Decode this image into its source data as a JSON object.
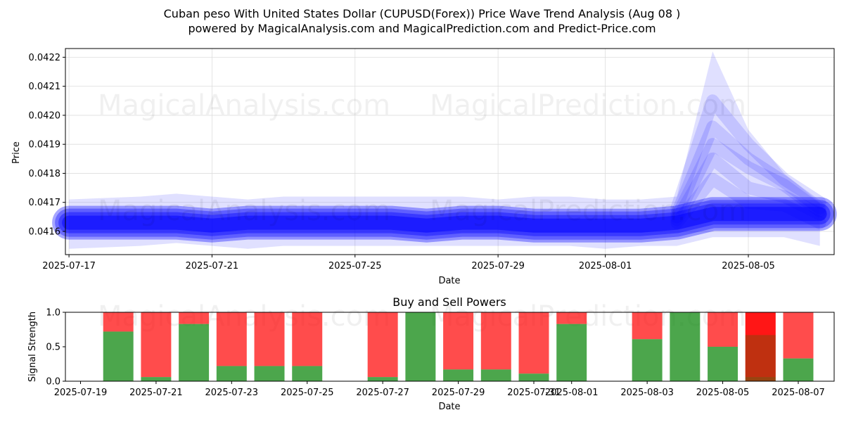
{
  "header": {
    "title": "Cuban peso With United States Dollar (CUPUSD(Forex)) Price Wave Trend Analysis (Aug 08 )",
    "subtitle": "powered by MagicalAnalysis.com and MagicalPrediction.com and Predict-Price.com"
  },
  "watermarks": [
    "MagicalAnalysis.com",
    "MagicalPrediction.com"
  ],
  "colors": {
    "wave": "#0000ff",
    "buy": "#008000",
    "sell": "#ff0000",
    "grid": "#dddddd"
  },
  "chart_data": [
    {
      "type": "area",
      "title": "",
      "xlabel": "Date",
      "ylabel": "Price",
      "xlim": [
        "2025-07-17",
        "2025-08-07"
      ],
      "ylim": [
        0.04152,
        0.04223
      ],
      "xticks": [
        "2025-07-17",
        "2025-07-21",
        "2025-07-25",
        "2025-07-29",
        "2025-08-01",
        "2025-08-05"
      ],
      "yticks": [
        0.0416,
        0.0417,
        0.0418,
        0.0419,
        0.042,
        0.0421,
        0.0422
      ],
      "grid": true,
      "main_series": {
        "dates": [
          "2025-07-17",
          "2025-07-18",
          "2025-07-19",
          "2025-07-20",
          "2025-07-21",
          "2025-07-22",
          "2025-07-23",
          "2025-07-24",
          "2025-07-25",
          "2025-07-26",
          "2025-07-27",
          "2025-07-28",
          "2025-07-29",
          "2025-07-30",
          "2025-07-31",
          "2025-08-01",
          "2025-08-02",
          "2025-08-03",
          "2025-08-04",
          "2025-08-05",
          "2025-08-06",
          "2025-08-07"
        ],
        "values": [
          0.04163,
          0.04163,
          0.04163,
          0.04163,
          0.04162,
          0.04163,
          0.04163,
          0.04163,
          0.04163,
          0.04163,
          0.04162,
          0.04163,
          0.04163,
          0.04162,
          0.04162,
          0.04162,
          0.04162,
          0.04163,
          0.04166,
          0.04166,
          0.04166,
          0.04166
        ]
      },
      "wave_band": {
        "dates": [
          "2025-07-17",
          "2025-07-19",
          "2025-07-20",
          "2025-07-21",
          "2025-07-22",
          "2025-07-23",
          "2025-07-24",
          "2025-07-25",
          "2025-07-27",
          "2025-07-28",
          "2025-07-29",
          "2025-07-30",
          "2025-07-31",
          "2025-08-01",
          "2025-08-02",
          "2025-08-03",
          "2025-08-04",
          "2025-08-05",
          "2025-08-06",
          "2025-08-07"
        ],
        "upper": [
          0.04171,
          0.04172,
          0.04173,
          0.04172,
          0.04171,
          0.04172,
          0.04172,
          0.04172,
          0.04172,
          0.04172,
          0.04171,
          0.04172,
          0.04172,
          0.04171,
          0.04171,
          0.04172,
          0.04222,
          0.04195,
          0.0418,
          0.0417
        ],
        "lower": [
          0.04154,
          0.04155,
          0.04156,
          0.04155,
          0.04154,
          0.04155,
          0.04155,
          0.04155,
          0.04155,
          0.04155,
          0.04155,
          0.04155,
          0.04155,
          0.04154,
          0.04155,
          0.04155,
          0.04158,
          0.04158,
          0.04158,
          0.04155
        ]
      },
      "wave_lines": [
        {
          "dates": [
            "2025-08-03",
            "2025-08-04",
            "2025-08-05",
            "2025-08-06",
            "2025-08-07"
          ],
          "values": [
            0.04168,
            0.04205,
            0.0419,
            0.04178,
            0.0417
          ]
        },
        {
          "dates": [
            "2025-08-03",
            "2025-08-04",
            "2025-08-05",
            "2025-08-06",
            "2025-08-07"
          ],
          "values": [
            0.04166,
            0.04196,
            0.04185,
            0.04177,
            0.04168
          ]
        },
        {
          "dates": [
            "2025-08-03",
            "2025-08-04",
            "2025-08-05",
            "2025-08-06",
            "2025-08-07"
          ],
          "values": [
            0.04165,
            0.0419,
            0.04182,
            0.04176,
            0.04167
          ]
        },
        {
          "dates": [
            "2025-08-03",
            "2025-08-04",
            "2025-08-05",
            "2025-08-06",
            "2025-08-07"
          ],
          "values": [
            0.04164,
            0.04185,
            0.04175,
            0.04172,
            0.04166
          ]
        },
        {
          "dates": [
            "2025-08-03",
            "2025-08-04",
            "2025-08-05",
            "2025-08-06",
            "2025-08-07"
          ],
          "values": [
            0.04163,
            0.04178,
            0.0417,
            0.04169,
            0.04163
          ]
        }
      ]
    },
    {
      "type": "bar",
      "title": "Buy and Sell Powers",
      "xlabel": "Date",
      "ylabel": "Signal Strength",
      "xlim": [
        "2025-07-19",
        "2025-08-08"
      ],
      "ylim": [
        0,
        1.0
      ],
      "xticks": [
        "2025-07-19",
        "2025-07-21",
        "2025-07-23",
        "2025-07-25",
        "2025-07-27",
        "2025-07-29",
        "2025-07-31",
        "2025-08-01",
        "2025-08-03",
        "2025-08-05",
        "2025-08-07"
      ],
      "yticks": [
        "0.0",
        "0.5",
        "1.0"
      ],
      "categories": [
        "2025-07-20",
        "2025-07-21",
        "2025-07-22",
        "2025-07-23",
        "2025-07-24",
        "2025-07-25",
        "2025-07-27",
        "2025-07-28",
        "2025-07-29",
        "2025-07-30",
        "2025-07-31",
        "2025-08-01",
        "2025-08-03",
        "2025-08-04",
        "2025-08-05",
        "2025-08-06",
        "2025-08-07"
      ],
      "series": [
        {
          "name": "Buy",
          "values": [
            0.72,
            0.06,
            0.83,
            0.22,
            0.22,
            0.22,
            0.06,
            1.0,
            0.17,
            0.17,
            0.11,
            0.83,
            0.61,
            1.0,
            0.5,
            0.06,
            0.33
          ]
        },
        {
          "name": "Sell",
          "values": [
            0.28,
            0.94,
            0.17,
            0.78,
            0.78,
            0.78,
            0.94,
            0.0,
            0.83,
            0.83,
            0.89,
            0.17,
            0.39,
            0.0,
            0.5,
            0.94,
            0.67
          ]
        }
      ],
      "overlay_bar": {
        "date": "2025-08-06",
        "value": 0.67
      }
    }
  ]
}
